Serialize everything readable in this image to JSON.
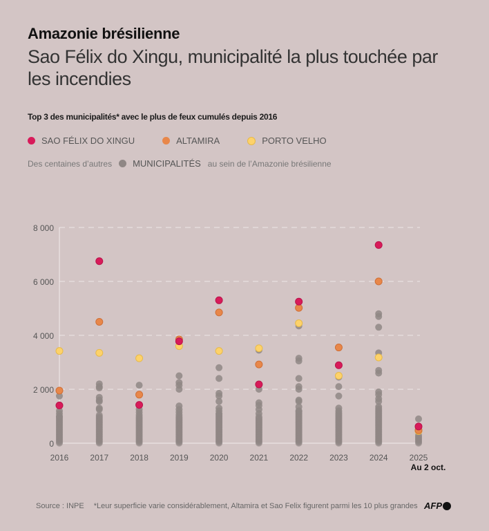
{
  "header": {
    "title": "Amazonie brésilienne",
    "subtitle": "Sao Félix do Xingu, municipalité la plus touchée par les incendies",
    "description": "Top 3 des municipalités* avec le plus de feux cumulés depuis 2016"
  },
  "legend": {
    "items": [
      {
        "label": "SAO FÉLIX DO XINGU",
        "color": "#d81b5a"
      },
      {
        "label": "ALTAMIRA",
        "color": "#e8874a"
      },
      {
        "label": "PORTO VELHO",
        "color": "#fdd26a"
      }
    ],
    "others_prefix": "Des centaines d’autres",
    "others_label": "MUNICIPALITÉS",
    "others_suffix": "au sein de l’Amazonie brésilienne",
    "others_color": "#8f8785"
  },
  "chart_data": {
    "type": "scatter",
    "title": "Top 3 des municipalités* avec le plus de feux cumulés depuis 2016",
    "xlabel": "",
    "ylabel": "",
    "ylim": [
      0,
      8000
    ],
    "yticks": [
      0,
      2000,
      4000,
      6000,
      8000
    ],
    "ytick_labels": [
      "0",
      "2 000",
      "4 000",
      "6 000",
      "8 000"
    ],
    "grid": true,
    "categories": [
      "2016",
      "2017",
      "2018",
      "2019",
      "2020",
      "2021",
      "2022",
      "2023",
      "2024",
      "2025"
    ],
    "x_annotation": {
      "category": "2025",
      "text": "Au 2 oct."
    },
    "series": [
      {
        "name": "SAO FÉLIX DO XINGU",
        "color": "#d81b5a",
        "values": [
          1400,
          6750,
          1420,
          3780,
          5300,
          2180,
          5250,
          2890,
          7350,
          620
        ]
      },
      {
        "name": "ALTAMIRA",
        "color": "#e8874a",
        "values": [
          1950,
          4500,
          1800,
          3850,
          4850,
          2920,
          5020,
          3550,
          6000,
          480
        ]
      },
      {
        "name": "PORTO VELHO",
        "color": "#fdd26a",
        "values": [
          3420,
          3350,
          3150,
          3600,
          3420,
          3520,
          4450,
          2500,
          3180,
          450
        ]
      }
    ],
    "others": {
      "name": "Autres municipalités",
      "color": "#8f8785",
      "outliers": [
        [
          1750,
          1200,
          1100,
          1000
        ],
        [
          2200,
          2100,
          2050,
          1700,
          1600,
          1550,
          1300,
          1250
        ],
        [
          2150,
          1250,
          1150,
          1050
        ],
        [
          2500,
          2250,
          2150,
          2000,
          1380,
          1250,
          1150,
          1050
        ],
        [
          2800,
          2400,
          1850,
          1750,
          1550,
          1300,
          1200,
          1100
        ],
        [
          3450,
          2000,
          1500,
          1400,
          1250,
          1100
        ],
        [
          4350,
          3150,
          3050,
          2400,
          2100,
          2000,
          1600,
          1550,
          1350,
          1200
        ],
        [
          2450,
          2100,
          1750,
          1300,
          1200
        ],
        [
          4800,
          4700,
          4300,
          3350,
          2700,
          2600,
          1900,
          1800,
          1650,
          1550,
          1350
        ],
        [
          900
        ]
      ],
      "dense_max": [
        1000,
        1050,
        1000,
        1000,
        1100,
        1000,
        1200,
        1150,
        1300,
        300
      ]
    }
  },
  "footer": {
    "source": "Source : INPE",
    "note": "*Leur superficie varie considérablement, Altamira et Sao Felix figurent parmi les 10 plus grandes",
    "logo": "AFP"
  }
}
